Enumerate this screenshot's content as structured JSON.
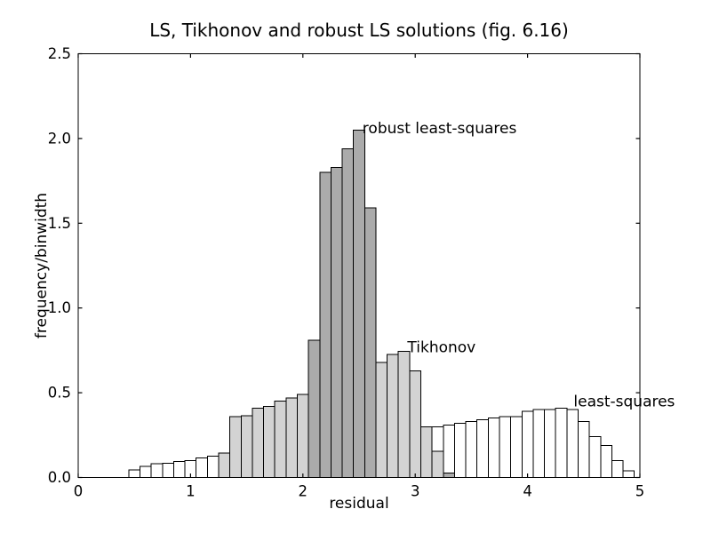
{
  "chart_data": {
    "type": "bar",
    "subtype": "overlaid-histograms",
    "title": "LS, Tikhonov and robust LS solutions (fig. 6.16)",
    "xlabel": "residual",
    "ylabel": "frequency/binwidth",
    "xlim": [
      0,
      5
    ],
    "ylim": [
      0,
      2.5
    ],
    "grid": false,
    "legend_position": "none (inline text annotations)",
    "bin_width": 0.1,
    "xticks": [
      {
        "v": 0,
        "label": "0"
      },
      {
        "v": 1,
        "label": "1"
      },
      {
        "v": 2,
        "label": "2"
      },
      {
        "v": 3,
        "label": "3"
      },
      {
        "v": 4,
        "label": "4"
      },
      {
        "v": 5,
        "label": "5"
      }
    ],
    "yticks": [
      {
        "v": 0.0,
        "label": "0.0"
      },
      {
        "v": 0.5,
        "label": "0.5"
      },
      {
        "v": 1.0,
        "label": "1.0"
      },
      {
        "v": 1.5,
        "label": "1.5"
      },
      {
        "v": 2.0,
        "label": "2.0"
      },
      {
        "v": 2.5,
        "label": "2.5"
      }
    ],
    "series": [
      {
        "name": "least-squares",
        "fill": "#ffffff",
        "edge": "#000000",
        "bins_center_height": [
          [
            0.5,
            0.045
          ],
          [
            0.6,
            0.065
          ],
          [
            0.7,
            0.08
          ],
          [
            0.8,
            0.085
          ],
          [
            0.9,
            0.095
          ],
          [
            1.0,
            0.1
          ],
          [
            1.1,
            0.115
          ],
          [
            1.2,
            0.125
          ],
          [
            3.2,
            0.3
          ],
          [
            3.3,
            0.31
          ],
          [
            3.4,
            0.32
          ],
          [
            3.5,
            0.33
          ],
          [
            3.6,
            0.34
          ],
          [
            3.7,
            0.35
          ],
          [
            3.8,
            0.36
          ],
          [
            3.9,
            0.36
          ],
          [
            4.0,
            0.39
          ],
          [
            4.1,
            0.4
          ],
          [
            4.2,
            0.4
          ],
          [
            4.3,
            0.41
          ],
          [
            4.4,
            0.4
          ],
          [
            4.5,
            0.33
          ],
          [
            4.6,
            0.24
          ],
          [
            4.7,
            0.19
          ],
          [
            4.8,
            0.1
          ],
          [
            4.9,
            0.04
          ]
        ]
      },
      {
        "name": "Tikhonov",
        "fill": "#d3d3d3",
        "edge": "#000000",
        "bins_center_height": [
          [
            1.3,
            0.145
          ],
          [
            1.4,
            0.36
          ],
          [
            1.5,
            0.365
          ],
          [
            1.6,
            0.41
          ],
          [
            1.7,
            0.42
          ],
          [
            1.8,
            0.45
          ],
          [
            1.9,
            0.47
          ],
          [
            2.0,
            0.49
          ],
          [
            2.7,
            0.68
          ],
          [
            2.8,
            0.725
          ],
          [
            2.9,
            0.745
          ],
          [
            3.0,
            0.63
          ],
          [
            3.1,
            0.3
          ],
          [
            3.2,
            0.155
          ]
        ]
      },
      {
        "name": "robust least-squares",
        "fill": "#ababab",
        "edge": "#000000",
        "bins_center_height": [
          [
            2.1,
            0.81
          ],
          [
            2.2,
            1.8
          ],
          [
            2.3,
            1.83
          ],
          [
            2.4,
            1.94
          ],
          [
            2.5,
            2.05
          ],
          [
            2.6,
            1.59
          ],
          [
            3.3,
            0.025
          ]
        ]
      }
    ],
    "annotations": [
      {
        "text": "robust least-squares",
        "x": 2.53,
        "y": 2.03
      },
      {
        "text": "Tikhonov",
        "x": 2.93,
        "y": 0.74
      },
      {
        "text": "least-squares",
        "x": 4.41,
        "y": 0.42
      }
    ]
  },
  "colors": {
    "background": "#ffffff",
    "text": "#000000",
    "axis": "#000000",
    "bar_white": "#ffffff",
    "bar_light_gray": "#d3d3d3",
    "bar_dark_gray": "#ababab"
  }
}
